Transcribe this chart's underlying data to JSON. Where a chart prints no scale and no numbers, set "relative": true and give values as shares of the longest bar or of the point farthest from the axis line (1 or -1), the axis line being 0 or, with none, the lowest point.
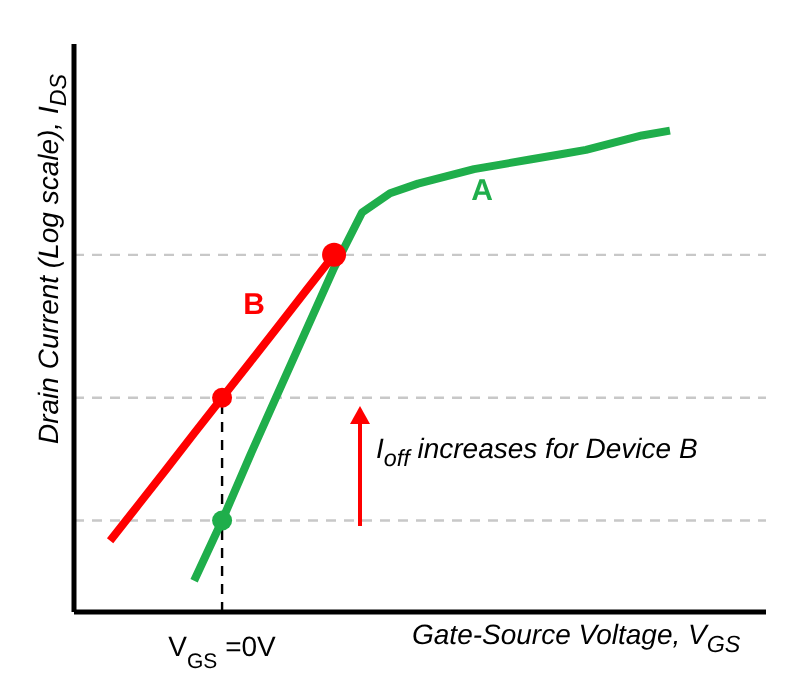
{
  "chart_data": {
    "type": "line",
    "relative": true,
    "xlabel": "Gate-Source Voltage, V$_{GS}$",
    "ylabel": "Drain Current (Log scale), I$_{DS}$",
    "categories": [
      null,
      null,
      null,
      null,
      null,
      null,
      null,
      null,
      null,
      null,
      null,
      null,
      null,
      null,
      null,
      null,
      null,
      null,
      null,
      null,
      null
    ],
    "series": [
      {
        "name": "A",
        "type": "line",
        "color": "#1fae4b",
        "values": [
          null,
          null,
          null,
          0.065,
          0.19,
          0.325,
          0.455,
          0.585,
          0.715,
          0.83,
          0.87,
          0.89,
          0.905,
          0.92,
          0.93,
          0.94,
          0.95,
          0.96,
          0.975,
          0.99,
          1
        ]
      },
      {
        "name": "B",
        "type": "line",
        "color": "#ff0000",
        "values": [
          0.148,
          0.222,
          0.296,
          0.371,
          0.445,
          0.519,
          0.593,
          0.668,
          0.742,
          null,
          null,
          null,
          null,
          null,
          null,
          null,
          null,
          null,
          null,
          null,
          null
        ]
      }
    ],
    "ref_lines": [
      {
        "axis": "y",
        "value": 0.742,
        "color": "#c8c8c8",
        "line_style": "dashed"
      },
      {
        "axis": "y",
        "value": 0.445,
        "color": "#c8c8c8",
        "line_style": "dashed"
      },
      {
        "axis": "y",
        "value": 0.19,
        "color": "#c8c8c8",
        "line_style": "dashed"
      },
      {
        "axis": "x",
        "label": "V$_{GS}$ =0V",
        "color": "#000000",
        "line_style": "dashed"
      }
    ],
    "annotations": [
      "I$_{off}$ increases for Device B"
    ]
  }
}
